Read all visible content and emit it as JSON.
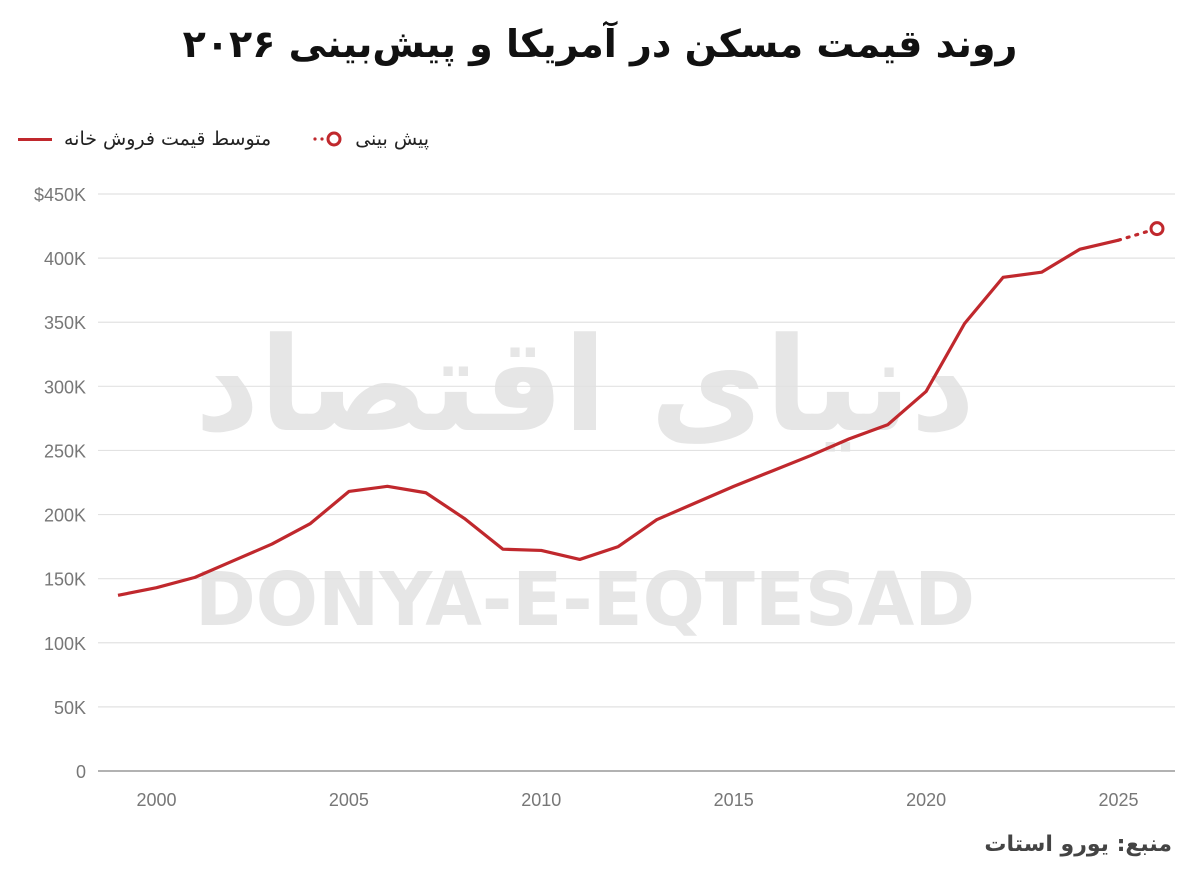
{
  "chart_data": {
    "type": "line",
    "title": "روند قیمت مسکن در آمریکا و پیش‌بینی ۲۰۲۶",
    "source": "منبع: یورو استات",
    "watermark": "DONYA-E-EQTESAD",
    "watermark_fa": "دنیای اقتصاد",
    "legend": {
      "placement": "top-left",
      "entries": [
        "متوسط قیمت فروش خانه",
        "پیش بینی"
      ]
    },
    "xlabel": "",
    "ylabel": "",
    "xlim": [
      1998.5,
      2027
    ],
    "ylim": [
      0,
      450000
    ],
    "y_ticks": [
      0,
      50000,
      100000,
      150000,
      200000,
      250000,
      300000,
      350000,
      400000,
      450000
    ],
    "y_tick_labels": [
      "0",
      "50K",
      "100K",
      "150K",
      "200K",
      "250K",
      "300K",
      "350K",
      "400K",
      "$450K"
    ],
    "x_ticks": [
      2000,
      2005,
      2010,
      2015,
      2020,
      2025
    ],
    "x_tick_labels": [
      "2000",
      "2005",
      "2010",
      "2015",
      "2020",
      "2025"
    ],
    "grid": true,
    "series": [
      {
        "name": "متوسط قیمت فروش خانه",
        "color": "#c0282d",
        "style": "solid",
        "x": [
          1999,
          2000,
          2001,
          2002,
          2003,
          2004,
          2005,
          2006,
          2007,
          2008,
          2009,
          2010,
          2011,
          2012,
          2013,
          2014,
          2015,
          2016,
          2017,
          2018,
          2019,
          2020,
          2021,
          2022,
          2023,
          2024,
          2025
        ],
        "y": [
          137000,
          143000,
          151000,
          164000,
          177000,
          193000,
          218000,
          222000,
          217000,
          197000,
          173000,
          172000,
          165000,
          175000,
          196000,
          209000,
          222000,
          234000,
          246000,
          259000,
          270000,
          296000,
          349000,
          385000,
          389000,
          407000,
          414000
        ]
      },
      {
        "name": "پیش بینی",
        "color": "#c0282d",
        "style": "dotted",
        "marker": "circle",
        "x": [
          2025,
          2026
        ],
        "y": [
          414000,
          423000
        ]
      }
    ]
  }
}
